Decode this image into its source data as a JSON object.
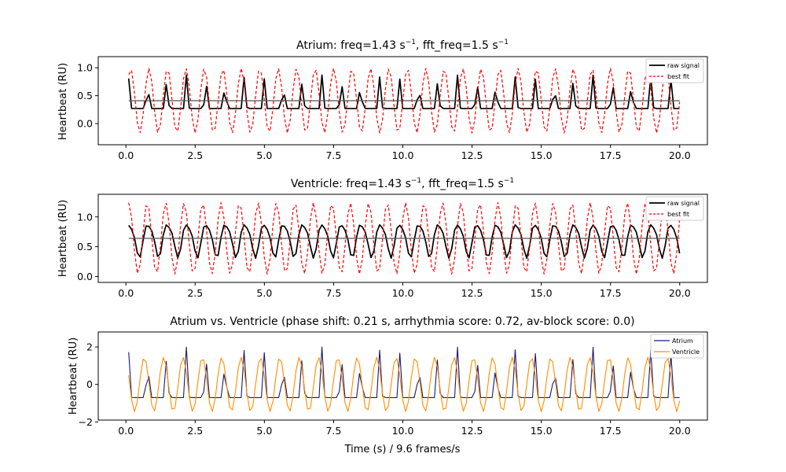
{
  "figure": {
    "xlabel": "Time (s) / 9.6 frames/s",
    "ylabel": "Heartbeat (RU)"
  },
  "chart_data": [
    {
      "type": "line",
      "title_main": "Atrium: freq=1.43 s",
      "title_sup1": "−1",
      "title_mid": ", fft_freq=1.5 s",
      "title_sup2": "−1",
      "xlim": [
        -1.0,
        21.0
      ],
      "ylim": [
        -0.38,
        1.2
      ],
      "xticks": [
        "0.0",
        "2.5",
        "5.0",
        "7.5",
        "10.0",
        "12.5",
        "15.0",
        "17.5",
        "20.0"
      ],
      "yticks": [
        "0.0",
        "0.5",
        "1.0"
      ],
      "ytick_values": [
        0.0,
        0.5,
        1.0
      ],
      "legend_position": "upper-right",
      "series": [
        {
          "name": "raw signal",
          "color": "#000000",
          "style": "solid",
          "kind": "spike",
          "freq": 1.43,
          "base": 0.27,
          "peak": 0.87,
          "start": 0.1
        },
        {
          "name": "best fit",
          "color": "#ff0000",
          "style": "dashed",
          "kind": "sine",
          "freq": 1.5,
          "offset": 0.41,
          "amp": 0.58,
          "phase": 0.0,
          "start": 0.1
        }
      ],
      "baseline": {
        "value": 0.41,
        "color": "#555555"
      }
    },
    {
      "type": "line",
      "title_main": "Ventricle: freq=1.43 s",
      "title_sup1": "−1",
      "title_mid": ", fft_freq=1.5 s",
      "title_sup2": "−1",
      "xlim": [
        -1.0,
        21.0
      ],
      "ylim": [
        -0.1,
        1.38
      ],
      "xticks": [
        "0.0",
        "2.5",
        "5.0",
        "7.5",
        "10.0",
        "12.5",
        "15.0",
        "17.5",
        "20.0"
      ],
      "yticks": [
        "0.0",
        "0.5",
        "1.0"
      ],
      "ytick_values": [
        0.0,
        0.5,
        1.0
      ],
      "legend_position": "upper-right",
      "series": [
        {
          "name": "raw signal",
          "color": "#000000",
          "style": "solid",
          "kind": "wave",
          "freq": 1.43,
          "offset": 0.63,
          "amp": 0.27,
          "phase": 0.5,
          "start": 0.1
        },
        {
          "name": "best fit",
          "color": "#ff0000",
          "style": "dashed",
          "kind": "sine",
          "freq": 1.5,
          "offset": 0.64,
          "amp": 0.6,
          "phase": 0.6,
          "start": 0.1
        }
      ],
      "baseline": {
        "value": 0.64,
        "color": "#555555"
      }
    },
    {
      "type": "line",
      "title_main": "Atrium vs. Ventricle (phase shift: 0.21 s, arrhythmia score:  0.72, av-block score: 0.0)",
      "xlim": [
        -1.0,
        21.0
      ],
      "ylim": [
        -1.9,
        2.8
      ],
      "xticks": [
        "0.0",
        "2.5",
        "5.0",
        "7.5",
        "10.0",
        "12.5",
        "15.0",
        "17.5",
        "20.0"
      ],
      "yticks": [
        "−2",
        "0",
        "2"
      ],
      "ytick_values": [
        -2,
        0,
        2
      ],
      "legend_position": "upper-right",
      "series": [
        {
          "name": "Atrium",
          "color": "#191970",
          "style": "solid",
          "kind": "spike",
          "freq": 1.43,
          "base": -0.7,
          "peak": 2.0,
          "start": 0.1
        },
        {
          "name": "Ventricle",
          "color": "#ff8c00",
          "style": "solid",
          "kind": "sine",
          "freq": 1.43,
          "offset": 0.0,
          "amp": 1.45,
          "phase": 1.9,
          "start": 0.1
        }
      ]
    }
  ]
}
